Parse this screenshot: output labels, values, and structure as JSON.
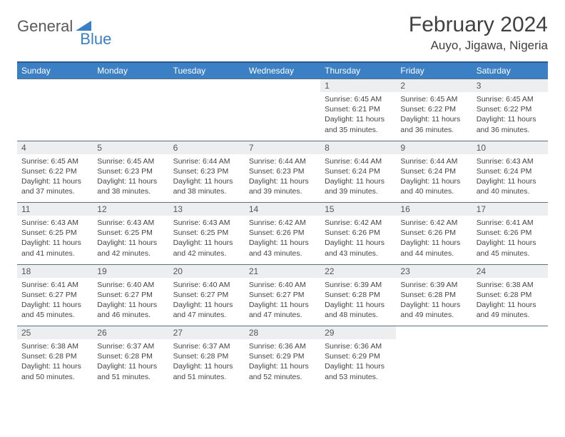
{
  "brand": {
    "part1": "General",
    "part2": "Blue"
  },
  "title": "February 2024",
  "location": "Auyo, Jigawa, Nigeria",
  "colors": {
    "header_bg": "#3b7fc4",
    "header_border": "#2a5a8c",
    "daynum_bg": "#eceef0",
    "daynum_border": "#5a6f80",
    "text": "#333333",
    "title_text": "#404040"
  },
  "weekdays": [
    "Sunday",
    "Monday",
    "Tuesday",
    "Wednesday",
    "Thursday",
    "Friday",
    "Saturday"
  ],
  "weeks": [
    [
      null,
      null,
      null,
      null,
      {
        "n": "1",
        "sr": "6:45 AM",
        "ss": "6:21 PM",
        "dl": "11 hours and 35 minutes."
      },
      {
        "n": "2",
        "sr": "6:45 AM",
        "ss": "6:22 PM",
        "dl": "11 hours and 36 minutes."
      },
      {
        "n": "3",
        "sr": "6:45 AM",
        "ss": "6:22 PM",
        "dl": "11 hours and 36 minutes."
      }
    ],
    [
      {
        "n": "4",
        "sr": "6:45 AM",
        "ss": "6:22 PM",
        "dl": "11 hours and 37 minutes."
      },
      {
        "n": "5",
        "sr": "6:45 AM",
        "ss": "6:23 PM",
        "dl": "11 hours and 38 minutes."
      },
      {
        "n": "6",
        "sr": "6:44 AM",
        "ss": "6:23 PM",
        "dl": "11 hours and 38 minutes."
      },
      {
        "n": "7",
        "sr": "6:44 AM",
        "ss": "6:23 PM",
        "dl": "11 hours and 39 minutes."
      },
      {
        "n": "8",
        "sr": "6:44 AM",
        "ss": "6:24 PM",
        "dl": "11 hours and 39 minutes."
      },
      {
        "n": "9",
        "sr": "6:44 AM",
        "ss": "6:24 PM",
        "dl": "11 hours and 40 minutes."
      },
      {
        "n": "10",
        "sr": "6:43 AM",
        "ss": "6:24 PM",
        "dl": "11 hours and 40 minutes."
      }
    ],
    [
      {
        "n": "11",
        "sr": "6:43 AM",
        "ss": "6:25 PM",
        "dl": "11 hours and 41 minutes."
      },
      {
        "n": "12",
        "sr": "6:43 AM",
        "ss": "6:25 PM",
        "dl": "11 hours and 42 minutes."
      },
      {
        "n": "13",
        "sr": "6:43 AM",
        "ss": "6:25 PM",
        "dl": "11 hours and 42 minutes."
      },
      {
        "n": "14",
        "sr": "6:42 AM",
        "ss": "6:26 PM",
        "dl": "11 hours and 43 minutes."
      },
      {
        "n": "15",
        "sr": "6:42 AM",
        "ss": "6:26 PM",
        "dl": "11 hours and 43 minutes."
      },
      {
        "n": "16",
        "sr": "6:42 AM",
        "ss": "6:26 PM",
        "dl": "11 hours and 44 minutes."
      },
      {
        "n": "17",
        "sr": "6:41 AM",
        "ss": "6:26 PM",
        "dl": "11 hours and 45 minutes."
      }
    ],
    [
      {
        "n": "18",
        "sr": "6:41 AM",
        "ss": "6:27 PM",
        "dl": "11 hours and 45 minutes."
      },
      {
        "n": "19",
        "sr": "6:40 AM",
        "ss": "6:27 PM",
        "dl": "11 hours and 46 minutes."
      },
      {
        "n": "20",
        "sr": "6:40 AM",
        "ss": "6:27 PM",
        "dl": "11 hours and 47 minutes."
      },
      {
        "n": "21",
        "sr": "6:40 AM",
        "ss": "6:27 PM",
        "dl": "11 hours and 47 minutes."
      },
      {
        "n": "22",
        "sr": "6:39 AM",
        "ss": "6:28 PM",
        "dl": "11 hours and 48 minutes."
      },
      {
        "n": "23",
        "sr": "6:39 AM",
        "ss": "6:28 PM",
        "dl": "11 hours and 49 minutes."
      },
      {
        "n": "24",
        "sr": "6:38 AM",
        "ss": "6:28 PM",
        "dl": "11 hours and 49 minutes."
      }
    ],
    [
      {
        "n": "25",
        "sr": "6:38 AM",
        "ss": "6:28 PM",
        "dl": "11 hours and 50 minutes."
      },
      {
        "n": "26",
        "sr": "6:37 AM",
        "ss": "6:28 PM",
        "dl": "11 hours and 51 minutes."
      },
      {
        "n": "27",
        "sr": "6:37 AM",
        "ss": "6:28 PM",
        "dl": "11 hours and 51 minutes."
      },
      {
        "n": "28",
        "sr": "6:36 AM",
        "ss": "6:29 PM",
        "dl": "11 hours and 52 minutes."
      },
      {
        "n": "29",
        "sr": "6:36 AM",
        "ss": "6:29 PM",
        "dl": "11 hours and 53 minutes."
      },
      null,
      null
    ]
  ],
  "labels": {
    "sunrise": "Sunrise: ",
    "sunset": "Sunset: ",
    "daylight": "Daylight: "
  }
}
